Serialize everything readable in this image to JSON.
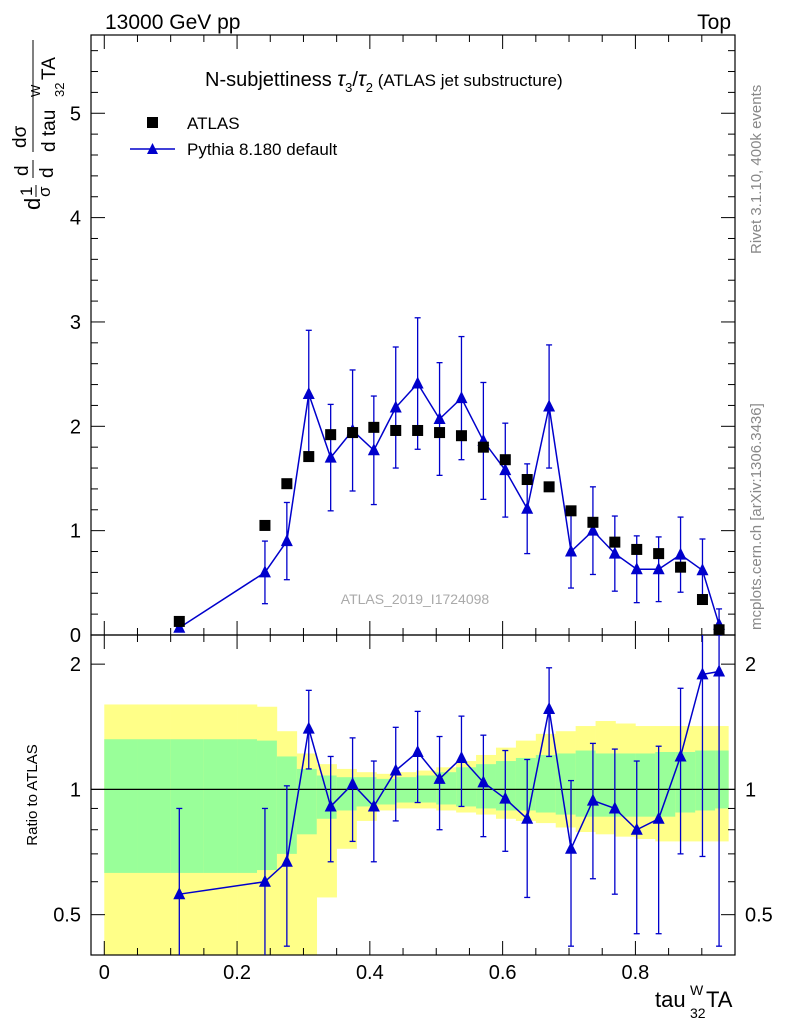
{
  "header": {
    "energy_label": "13000 GeV pp",
    "process_label": "Top"
  },
  "side_text": {
    "rivet": "Rivet 3.1.10,  400k events",
    "mcplots": "mcplots.cern.ch [arXiv:1306.3436]"
  },
  "colors": {
    "mc": "#0000cc",
    "data": "#000000",
    "band_inner": "#99ff99",
    "band_outer": "#ffff88"
  },
  "chart_data": [
    {
      "type": "scatter",
      "panel": "main",
      "title_main": "N-subjettiness ",
      "title_tau3": "τ",
      "title_sub3": "3",
      "title_slash": "/",
      "title_tau2": "τ",
      "title_sub2": "2",
      "title_paren": " (ATLAS jet substructure)",
      "ylabel_parts": [
        "1",
        "σ",
        "dσ",
        "tau",
        "W",
        "32",
        "TA"
      ],
      "analysis_label": "ATLAS_2019_I1724098",
      "xlim": [
        -0.02,
        0.95
      ],
      "ylim": [
        0,
        5.75
      ],
      "yticks": [
        0,
        1,
        2,
        3,
        4,
        5
      ],
      "ytick_labels": [
        "0",
        "1",
        "2",
        "3",
        "4",
        "5"
      ],
      "legend": {
        "position": "top-left",
        "entries": [
          "ATLAS",
          "Pythia 8.180 default"
        ]
      },
      "series": [
        {
          "name": "ATLAS",
          "marker": "square",
          "x": [
            0.113,
            0.242,
            0.275,
            0.308,
            0.341,
            0.374,
            0.406,
            0.439,
            0.472,
            0.505,
            0.538,
            0.571,
            0.604,
            0.637,
            0.67,
            0.703,
            0.736,
            0.769,
            0.802,
            0.835,
            0.868,
            0.901,
            0.926
          ],
          "y": [
            0.13,
            1.05,
            1.45,
            1.71,
            1.92,
            1.94,
            1.99,
            1.96,
            1.96,
            1.94,
            1.91,
            1.8,
            1.68,
            1.49,
            1.42,
            1.19,
            1.08,
            0.89,
            0.82,
            0.78,
            0.65,
            0.34,
            0.05
          ]
        },
        {
          "name": "Pythia 8.180 default",
          "marker": "triangle",
          "x": [
            0.113,
            0.242,
            0.275,
            0.308,
            0.341,
            0.374,
            0.406,
            0.439,
            0.472,
            0.505,
            0.538,
            0.571,
            0.604,
            0.637,
            0.67,
            0.703,
            0.736,
            0.769,
            0.802,
            0.835,
            0.868,
            0.901,
            0.926
          ],
          "y": [
            0.07,
            0.6,
            0.9,
            2.31,
            1.7,
            1.96,
            1.77,
            2.18,
            2.41,
            2.07,
            2.27,
            1.86,
            1.58,
            1.21,
            2.19,
            0.8,
            1.0,
            0.78,
            0.63,
            0.63,
            0.77,
            0.62,
            0.1
          ],
          "err": [
            0.0,
            0.3,
            0.37,
            0.61,
            0.51,
            0.58,
            0.52,
            0.58,
            0.63,
            0.54,
            0.59,
            0.56,
            0.45,
            0.43,
            0.59,
            0.35,
            0.42,
            0.36,
            0.32,
            0.31,
            0.36,
            0.3,
            0.15
          ]
        }
      ]
    },
    {
      "type": "scatter",
      "panel": "ratio",
      "ylabel": "Ratio to ATLAS",
      "xlabel_parts": [
        "tau",
        "W",
        "32",
        "TA"
      ],
      "scale": "log",
      "ylim": [
        0.4,
        2.35
      ],
      "yticks": [
        0.5,
        1,
        2
      ],
      "ytick_labels": [
        "0.5",
        "1",
        "2"
      ],
      "xticks": [
        0,
        0.2,
        0.4,
        0.6,
        0.8
      ],
      "xtick_labels": [
        "0",
        "0.2",
        "0.4",
        "0.6",
        "0.8"
      ],
      "bands": {
        "edges": [
          0,
          0.05,
          0.1,
          0.15,
          0.2,
          0.23,
          0.26,
          0.29,
          0.32,
          0.35,
          0.38,
          0.41,
          0.44,
          0.47,
          0.5,
          0.53,
          0.56,
          0.59,
          0.62,
          0.65,
          0.68,
          0.71,
          0.74,
          0.77,
          0.8,
          0.83,
          0.86,
          0.89,
          0.92,
          0.94
        ],
        "outer_low": [
          0.4,
          0.4,
          0.4,
          0.4,
          0.4,
          0.4,
          0.4,
          0.4,
          0.55,
          0.72,
          0.84,
          0.89,
          0.9,
          0.9,
          0.89,
          0.88,
          0.87,
          0.85,
          0.84,
          0.83,
          0.81,
          0.79,
          0.78,
          0.77,
          0.76,
          0.75,
          0.75,
          0.75,
          0.75
        ],
        "outer_high": [
          1.6,
          1.6,
          1.6,
          1.6,
          1.6,
          1.58,
          1.38,
          1.22,
          1.15,
          1.12,
          1.1,
          1.09,
          1.1,
          1.11,
          1.13,
          1.17,
          1.21,
          1.26,
          1.31,
          1.36,
          1.38,
          1.42,
          1.46,
          1.44,
          1.42,
          1.42,
          1.42,
          1.42,
          1.42
        ],
        "inner_low": [
          0.63,
          0.63,
          0.63,
          0.63,
          0.63,
          0.64,
          0.7,
          0.78,
          0.85,
          0.89,
          0.91,
          0.92,
          0.93,
          0.93,
          0.92,
          0.91,
          0.9,
          0.89,
          0.89,
          0.88,
          0.87,
          0.86,
          0.86,
          0.86,
          0.86,
          0.86,
          0.88,
          0.89,
          0.9
        ],
        "inner_high": [
          1.32,
          1.32,
          1.32,
          1.32,
          1.32,
          1.31,
          1.2,
          1.12,
          1.08,
          1.07,
          1.07,
          1.06,
          1.07,
          1.08,
          1.1,
          1.13,
          1.15,
          1.17,
          1.19,
          1.21,
          1.22,
          1.24,
          1.22,
          1.22,
          1.22,
          1.23,
          1.23,
          1.24,
          1.24
        ]
      },
      "series": [
        {
          "name": "Pythia 8.180 default / ATLAS",
          "x": [
            0.113,
            0.242,
            0.275,
            0.308,
            0.341,
            0.374,
            0.406,
            0.439,
            0.472,
            0.505,
            0.538,
            0.571,
            0.604,
            0.637,
            0.67,
            0.703,
            0.736,
            0.769,
            0.802,
            0.835,
            0.868,
            0.901,
            0.926
          ],
          "y": [
            0.56,
            0.6,
            0.67,
            1.4,
            0.91,
            1.03,
            0.91,
            1.11,
            1.23,
            1.06,
            1.19,
            1.04,
            0.95,
            0.85,
            1.56,
            0.72,
            0.94,
            0.9,
            0.8,
            0.85,
            1.2,
            1.89,
            1.92
          ],
          "err_low": [
            0.3,
            0.3,
            0.25,
            0.28,
            0.24,
            0.28,
            0.24,
            0.27,
            0.3,
            0.26,
            0.28,
            0.27,
            0.24,
            0.3,
            0.36,
            0.3,
            0.33,
            0.34,
            0.35,
            0.4,
            0.5,
            1.2,
            1.5
          ],
          "err_high": [
            0.34,
            0.3,
            0.35,
            0.33,
            0.29,
            0.3,
            0.26,
            0.3,
            0.31,
            0.28,
            0.31,
            0.31,
            0.29,
            0.33,
            0.4,
            0.33,
            0.35,
            0.35,
            0.37,
            0.42,
            0.55,
            0.9,
            1.0
          ]
        }
      ]
    }
  ]
}
